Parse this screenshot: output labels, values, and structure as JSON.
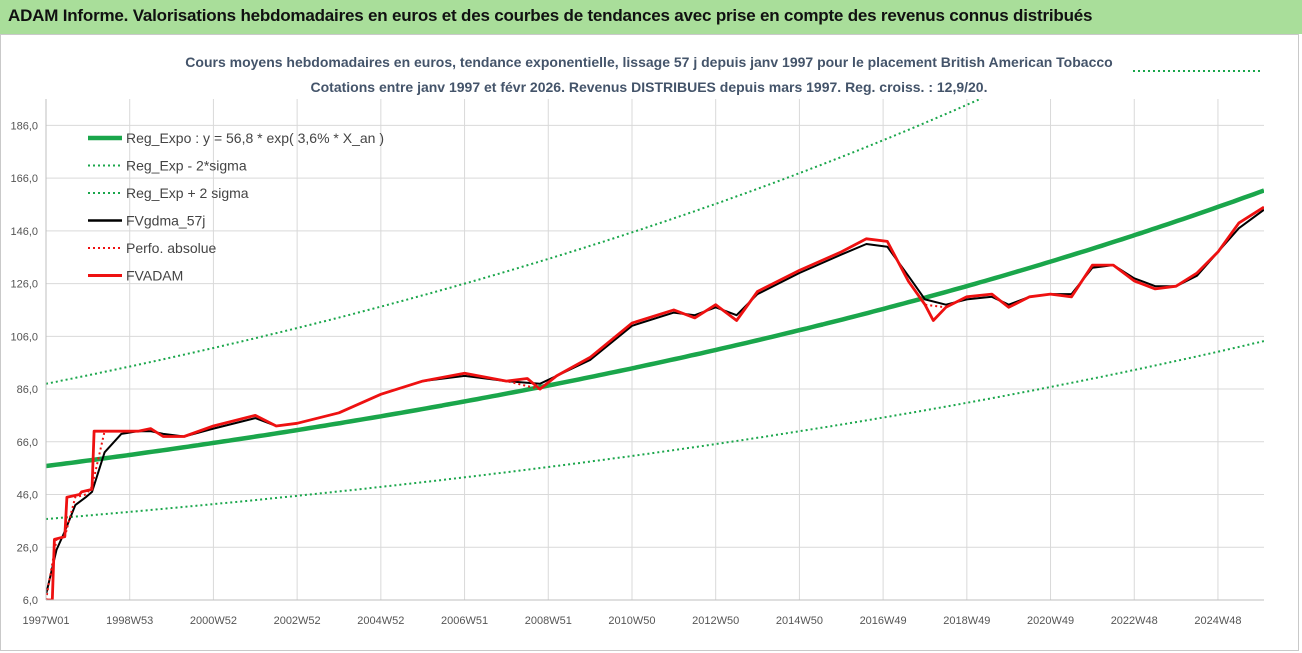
{
  "header": {
    "title": "ADAM Informe. Valorisations hebdomadaires en euros et des courbes de tendances avec prise en compte des revenus connus distribués"
  },
  "colors": {
    "header_band": "#a9de9a",
    "reg_expo": "#1aa64b",
    "bands": "#1aa64b",
    "fvgdma": "#000000",
    "fvadam": "#ee1111",
    "subtitle": "#44546a"
  },
  "chart_data": {
    "type": "line",
    "subtitle_line1": "Cours moyens hebdomadaires en euros, tendance exponentielle, lissage 57 j depuis janv 1997 pour le placement British American Tobacco",
    "subtitle_line2": "Cotations entre janv 1997 et févr 2026. Revenus DISTRIBUES depuis mars 1997. Reg. croiss. : 12,9/20.",
    "ylim": [
      6,
      196
    ],
    "yticks": [
      "6,0",
      "26,0",
      "46,0",
      "66,0",
      "86,0",
      "106,0",
      "126,0",
      "146,0",
      "166,0",
      "186,0"
    ],
    "x_range": [
      1997.0,
      2026.1
    ],
    "xticks": [
      {
        "label": "1997W01",
        "t": 1997.0
      },
      {
        "label": "1998W53",
        "t": 1999.0
      },
      {
        "label": "2000W52",
        "t": 2001.0
      },
      {
        "label": "2002W52",
        "t": 2003.0
      },
      {
        "label": "2004W52",
        "t": 2005.0
      },
      {
        "label": "2006W51",
        "t": 2007.0
      },
      {
        "label": "2008W51",
        "t": 2009.0
      },
      {
        "label": "2010W50",
        "t": 2011.0
      },
      {
        "label": "2012W50",
        "t": 2013.0
      },
      {
        "label": "2014W50",
        "t": 2015.0
      },
      {
        "label": "2016W49",
        "t": 2017.0
      },
      {
        "label": "2018W49",
        "t": 2019.0
      },
      {
        "label": "2020W49",
        "t": 2021.0
      },
      {
        "label": "2022W48",
        "t": 2023.0
      },
      {
        "label": "2024W48",
        "t": 2025.0
      }
    ],
    "grid": true,
    "legend_position": "top-left",
    "series": [
      {
        "name": "Reg_Expo : y = 56,8 * exp( 3,6% *  X_an )",
        "style": "thick-solid",
        "color": "#1aa64b",
        "t": [
          1997.0,
          2026.1
        ],
        "v": [
          56.8,
          161.3
        ]
      },
      {
        "name": "Reg_Exp - 2*sigma",
        "style": "dotted",
        "color": "#1aa64b",
        "t": [
          1997.0,
          2026.1
        ],
        "v": [
          36.7,
          104.2
        ]
      },
      {
        "name": "Reg_Exp + 2 sigma",
        "style": "dotted",
        "color": "#1aa64b",
        "t": [
          1997.0,
          2026.1
        ],
        "v": [
          88.0,
          250.0
        ]
      },
      {
        "name": "FVgdma_57j",
        "style": "solid",
        "color": "#000000",
        "t": [
          1997.0,
          1997.25,
          1997.45,
          1997.7,
          1997.95,
          1998.1,
          1998.4,
          1998.8,
          1999.2,
          1999.5,
          1999.8,
          2000.3,
          2001.0,
          2002.0,
          2002.5,
          2003.0,
          2004.0,
          2005.0,
          2006.0,
          2007.0,
          2008.0,
          2008.8,
          2009.2,
          2010.0,
          2011.0,
          2012.0,
          2012.5,
          2013.0,
          2013.5,
          2014.0,
          2015.0,
          2016.0,
          2016.6,
          2017.1,
          2017.6,
          2018.0,
          2018.5,
          2019.0,
          2019.6,
          2020.0,
          2020.5,
          2021.0,
          2021.5,
          2022.0,
          2022.5,
          2023.0,
          2023.5,
          2024.0,
          2024.5,
          2025.0,
          2025.5,
          2026.1
        ],
        "v": [
          8,
          25,
          32,
          42,
          45,
          47,
          62,
          69,
          70,
          70,
          69,
          68,
          71,
          75,
          72,
          73,
          77,
          84,
          89,
          91,
          89,
          88,
          91,
          97,
          110,
          115,
          114,
          117,
          114,
          122,
          130,
          137,
          141,
          140,
          129,
          120,
          118,
          120,
          121,
          118,
          121,
          122,
          122,
          132,
          133,
          128,
          125,
          125,
          129,
          138,
          147,
          154
        ]
      },
      {
        "name": "Perfo. absolue",
        "style": "dotted",
        "color": "#ee1111",
        "t": [
          1997.0,
          1997.25,
          1997.45,
          1997.7,
          1997.95,
          1998.1,
          1998.4,
          1998.8,
          1999.2,
          1999.5,
          1999.8,
          2000.3,
          2001.0,
          2002.0,
          2002.5,
          2003.0,
          2004.0,
          2005.0,
          2006.0,
          2007.0,
          2008.0,
          2008.8,
          2009.2,
          2010.0,
          2011.0,
          2012.0,
          2012.5,
          2013.0,
          2013.5,
          2014.0,
          2015.0,
          2016.0,
          2016.6,
          2017.1,
          2017.6,
          2018.0,
          2018.5,
          2019.0,
          2019.6,
          2020.0,
          2020.5,
          2021.0,
          2021.5,
          2022.0,
          2022.5,
          2023.0,
          2023.5,
          2024.0,
          2024.5,
          2025.0,
          2025.5,
          2026.1
        ],
        "v": [
          6,
          29,
          30,
          45,
          46,
          49,
          70,
          70,
          70,
          71,
          68,
          68,
          72,
          76,
          72,
          73,
          77,
          84,
          89,
          92,
          89,
          86,
          91,
          98,
          111,
          116,
          113,
          118,
          112,
          123,
          131,
          138,
          143,
          142,
          127,
          118,
          117,
          121,
          122,
          117,
          121,
          122,
          121,
          133,
          133,
          127,
          124,
          125,
          130,
          138,
          149,
          155
        ]
      },
      {
        "name": "FVADAM",
        "style": "solid",
        "color": "#ee1111",
        "t": [
          1997.0,
          1997.15,
          1997.2,
          1997.45,
          1997.5,
          1997.8,
          1997.85,
          1998.1,
          1998.15,
          1998.5,
          1998.8,
          1999.2,
          1999.5,
          1999.8,
          2000.3,
          2001.0,
          2002.0,
          2002.5,
          2003.0,
          2004.0,
          2005.0,
          2006.0,
          2007.0,
          2008.0,
          2008.5,
          2008.8,
          2009.2,
          2010.0,
          2011.0,
          2012.0,
          2012.5,
          2013.0,
          2013.5,
          2014.0,
          2015.0,
          2016.0,
          2016.6,
          2017.1,
          2017.6,
          2018.0,
          2018.2,
          2018.5,
          2019.0,
          2019.6,
          2020.0,
          2020.5,
          2021.0,
          2021.5,
          2022.0,
          2022.5,
          2023.0,
          2023.5,
          2024.0,
          2024.5,
          2025.0,
          2025.5,
          2026.1
        ],
        "v": [
          6,
          6,
          29,
          30,
          45,
          46,
          47,
          48,
          70,
          70,
          70,
          70,
          71,
          68,
          68,
          72,
          76,
          72,
          73,
          77,
          84,
          89,
          92,
          89,
          90,
          86,
          91,
          98,
          111,
          116,
          113,
          118,
          112,
          123,
          131,
          138,
          143,
          142,
          127,
          118,
          112,
          117,
          121,
          122,
          117,
          121,
          122,
          121,
          133,
          133,
          127,
          124,
          125,
          130,
          138,
          149,
          155
        ]
      }
    ]
  }
}
